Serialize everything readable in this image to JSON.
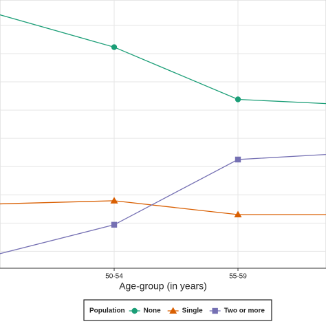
{
  "chart_data": {
    "type": "line",
    "x_label": "Age-group (in years)",
    "categories": [
      null,
      "50-54",
      "55-59",
      null
    ],
    "series": [
      {
        "name": "None",
        "color": "#1b9e77",
        "marker": "circle",
        "values": [
          9.47,
          8.23,
          6.38,
          6.17
        ]
      },
      {
        "name": "Single",
        "color": "#d95f02",
        "marker": "triangle",
        "values": [
          2.67,
          2.79,
          2.3,
          2.3
        ]
      },
      {
        "name": "Two or more",
        "color": "#7570b3",
        "marker": "square",
        "values": [
          0.83,
          1.94,
          4.25,
          4.5
        ]
      }
    ],
    "ylim": [
      0.4,
      9.9
    ],
    "grid": true,
    "legend_title": "Population",
    "legend": "bottom"
  }
}
